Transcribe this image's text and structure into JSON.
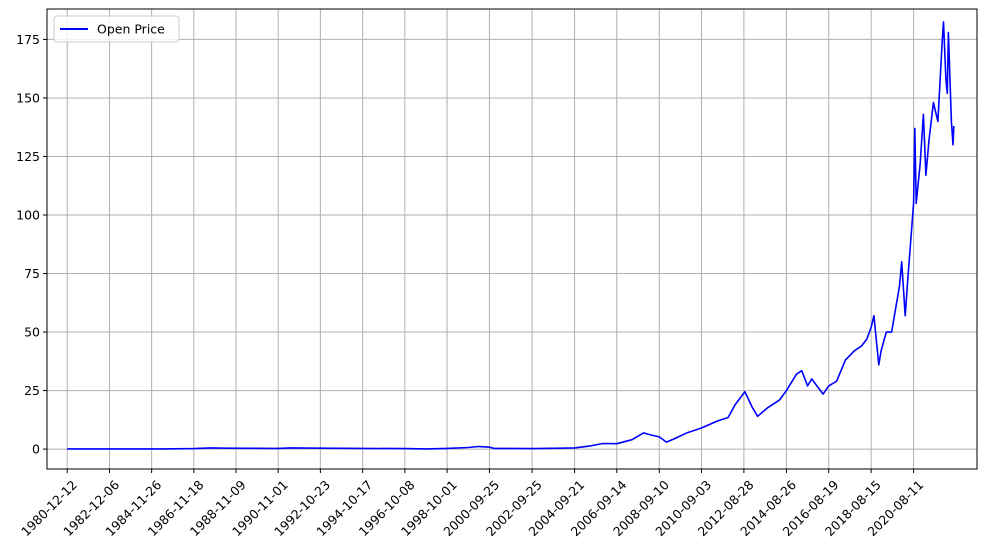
{
  "chart_data": {
    "type": "line",
    "title": "",
    "xlabel": "",
    "ylabel": "",
    "grid": true,
    "legend_placement": "top-left",
    "x_tick_labels": [
      "1980-12-12",
      "1982-12-06",
      "1984-11-26",
      "1986-11-18",
      "1988-11-09",
      "1990-11-01",
      "1992-10-23",
      "1994-10-17",
      "1996-10-08",
      "1998-10-01",
      "2000-09-25",
      "2002-09-25",
      "2004-09-21",
      "2006-09-14",
      "2008-09-10",
      "2010-09-03",
      "2012-08-28",
      "2014-08-26",
      "2016-08-19",
      "2018-08-15",
      "2020-08-11"
    ],
    "y_ticks": [
      0,
      25,
      50,
      75,
      100,
      125,
      150,
      175
    ],
    "xlim": [
      "1980-01-01",
      "2023-08-01"
    ],
    "ylim": [
      -8.5,
      188
    ],
    "series": [
      {
        "name": "Open Price",
        "color": "#0000ff",
        "points": [
          [
            "1980-12-12",
            0.1
          ],
          [
            "1983-06-01",
            0.1
          ],
          [
            "1985-06-01",
            0.1
          ],
          [
            "1986-11-18",
            0.2
          ],
          [
            "1987-09-01",
            0.5
          ],
          [
            "1988-06-01",
            0.4
          ],
          [
            "1990-11-01",
            0.3
          ],
          [
            "1991-06-01",
            0.5
          ],
          [
            "1992-10-23",
            0.4
          ],
          [
            "1994-10-17",
            0.3
          ],
          [
            "1996-10-08",
            0.2
          ],
          [
            "1997-10-01",
            0.1
          ],
          [
            "1998-10-01",
            0.3
          ],
          [
            "1999-10-01",
            0.7
          ],
          [
            "2000-03-15",
            1.1
          ],
          [
            "2000-09-25",
            0.8
          ],
          [
            "2000-12-15",
            0.3
          ],
          [
            "2002-09-25",
            0.2
          ],
          [
            "2004-02-01",
            0.4
          ],
          [
            "2004-09-21",
            0.5
          ],
          [
            "2005-06-01",
            1.3
          ],
          [
            "2006-01-15",
            2.4
          ],
          [
            "2006-09-14",
            2.3
          ],
          [
            "2007-06-01",
            4.0
          ],
          [
            "2007-12-15",
            6.9
          ],
          [
            "2008-05-01",
            6.0
          ],
          [
            "2008-09-10",
            5.2
          ],
          [
            "2009-01-10",
            3.0
          ],
          [
            "2009-06-01",
            4.5
          ],
          [
            "2010-01-01",
            7.0
          ],
          [
            "2010-09-03",
            9.0
          ],
          [
            "2011-06-01",
            12.0
          ],
          [
            "2011-12-01",
            13.5
          ],
          [
            "2012-04-01",
            19.0
          ],
          [
            "2012-09-15",
            24.5
          ],
          [
            "2013-01-15",
            18.0
          ],
          [
            "2013-04-20",
            14.0
          ],
          [
            "2013-10-01",
            17.5
          ],
          [
            "2014-05-01",
            21.0
          ],
          [
            "2014-08-26",
            25.0
          ],
          [
            "2015-02-15",
            32.0
          ],
          [
            "2015-05-15",
            33.5
          ],
          [
            "2015-08-24",
            27.0
          ],
          [
            "2015-11-01",
            30.0
          ],
          [
            "2016-05-15",
            23.5
          ],
          [
            "2016-08-19",
            27.0
          ],
          [
            "2017-01-01",
            29.0
          ],
          [
            "2017-06-01",
            38.0
          ],
          [
            "2017-11-01",
            42.0
          ],
          [
            "2018-03-01",
            44.0
          ],
          [
            "2018-06-01",
            47.0
          ],
          [
            "2018-08-15",
            52.0
          ],
          [
            "2018-10-01",
            57.0
          ],
          [
            "2018-12-24",
            36.0
          ],
          [
            "2019-02-01",
            42.0
          ],
          [
            "2019-05-01",
            50.0
          ],
          [
            "2019-08-01",
            50.0
          ],
          [
            "2019-12-15",
            70.0
          ],
          [
            "2020-01-20",
            80.0
          ],
          [
            "2020-03-20",
            57.0
          ],
          [
            "2020-05-01",
            72.0
          ],
          [
            "2020-08-11",
            105.0
          ],
          [
            "2020-09-01",
            137.0
          ],
          [
            "2020-09-25",
            105.0
          ],
          [
            "2020-12-01",
            122.0
          ],
          [
            "2021-01-25",
            143.0
          ],
          [
            "2021-03-10",
            117.0
          ],
          [
            "2021-05-01",
            132.0
          ],
          [
            "2021-07-15",
            148.0
          ],
          [
            "2021-10-01",
            140.0
          ],
          [
            "2021-12-15",
            175.0
          ],
          [
            "2022-01-04",
            182.5
          ],
          [
            "2022-02-15",
            158.0
          ],
          [
            "2022-03-10",
            152.0
          ],
          [
            "2022-03-30",
            178.0
          ],
          [
            "2022-05-20",
            140.0
          ],
          [
            "2022-06-16",
            130.0
          ],
          [
            "2022-06-30",
            138.0
          ]
        ]
      }
    ]
  }
}
